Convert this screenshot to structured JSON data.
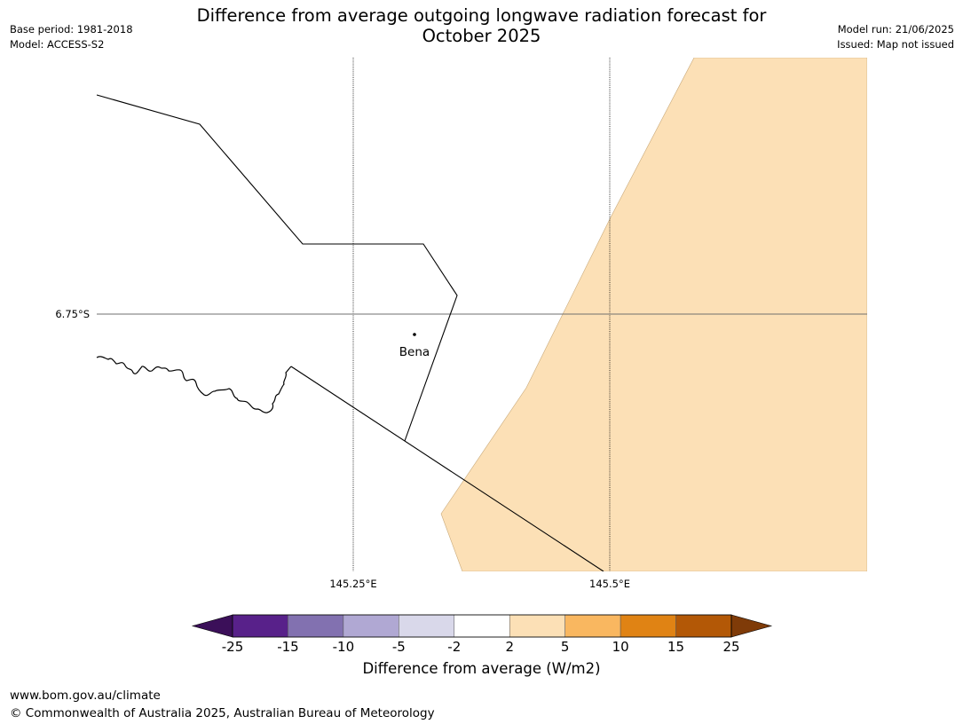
{
  "title_line1": "Difference from average outgoing longwave radiation forecast for",
  "title_line2": "October 2025",
  "meta_left": [
    "Base period: 1981-2018",
    "Model: ACCESS-S2"
  ],
  "meta_right": [
    "Model run: 21/06/2025",
    "Issued: Map not issued"
  ],
  "map": {
    "lat_label": "6.75°S",
    "lon_labels": [
      "145.25°E",
      "145.5°E"
    ],
    "place": "Bena"
  },
  "colorbar": {
    "title": "Difference from average (W/m2)",
    "tick_labels": [
      "-25",
      "-15",
      "-10",
      "-5",
      "-2",
      "2",
      "5",
      "10",
      "15",
      "25"
    ],
    "colors": [
      "#3b0f59",
      "#58218a",
      "#8271b0",
      "#b0a8d3",
      "#d9d8ea",
      "#ffffff",
      "#fce0b6",
      "#f9b760",
      "#e08314",
      "#b35806",
      "#7f3b08"
    ]
  },
  "footer": [
    "www.bom.gov.au/climate",
    "© Commonwealth of Australia 2025, Australian Bureau of Meteorology"
  ]
}
